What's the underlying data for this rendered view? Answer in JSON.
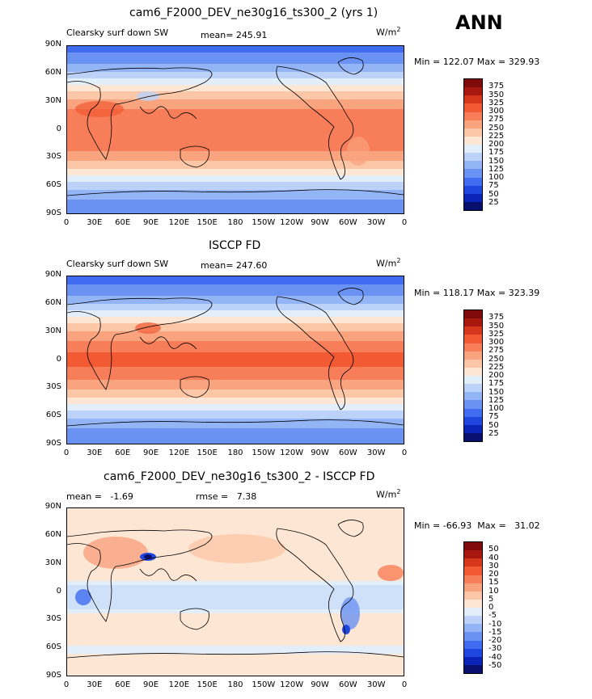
{
  "season": "ANN",
  "units": "W/m",
  "units_sup": "2",
  "panels": [
    {
      "title": "cam6_F2000_DEV_ne30g16_ts300_2 (yrs 1)",
      "left_label": "Clearsky surf down SW",
      "stat_label": "mean=",
      "stat_value": "245.91",
      "min_label": "Min =",
      "min_value": "122.07",
      "max_label": "Max =",
      "max_value": "329.93",
      "colorbar_labels": [
        "375",
        "350",
        "325",
        "300",
        "275",
        "250",
        "225",
        "200",
        "175",
        "150",
        "125",
        "100",
        "75",
        "50",
        "25"
      ]
    },
    {
      "title": "ISCCP FD",
      "left_label": "Clearsky surf down SW",
      "stat_label": "mean=",
      "stat_value": "247.60",
      "min_label": "Min =",
      "min_value": "118.17",
      "max_label": "Max =",
      "max_value": "323.39",
      "colorbar_labels": [
        "375",
        "350",
        "325",
        "300",
        "275",
        "250",
        "225",
        "200",
        "175",
        "150",
        "125",
        "100",
        "75",
        "50",
        "25"
      ]
    },
    {
      "title": "cam6_F2000_DEV_ne30g16_ts300_2 - ISCCP FD",
      "left_label": "mean =",
      "left_value": "-1.69",
      "stat_label": "rmse =",
      "stat_value": "7.38",
      "min_label": "Min =",
      "min_value": "-66.93",
      "max_label": "Max =",
      "max_value": "31.02",
      "colorbar_labels": [
        "50",
        "40",
        "30",
        "20",
        "15",
        "10",
        "5",
        "0",
        "-5",
        "-10",
        "-15",
        "-20",
        "-30",
        "-40",
        "-50"
      ]
    }
  ],
  "lat_ticks": [
    "90N",
    "60N",
    "30N",
    "0",
    "30S",
    "60S",
    "90S"
  ],
  "lon_ticks": [
    "0",
    "30E",
    "60E",
    "90E",
    "120E",
    "150E",
    "180",
    "150W",
    "120W",
    "90W",
    "60W",
    "30W",
    "0"
  ],
  "colors": {
    "abs_scale": [
      "#08106e",
      "#0b24b8",
      "#1f47e0",
      "#3f6cf0",
      "#6a92f3",
      "#93b4f5",
      "#bcd2f8",
      "#e3eefb",
      "#fde6d3",
      "#fbc7a7",
      "#f9a37f",
      "#f77e58",
      "#f15a32",
      "#d6371c",
      "#a8180f",
      "#7e0a0a"
    ],
    "diff_scale": [
      "#08106e",
      "#0b24b8",
      "#1f47e0",
      "#3f6cf0",
      "#6a92f3",
      "#93b4f5",
      "#bcd2f8",
      "#e3eefb",
      "#fde6d3",
      "#fbc7a7",
      "#f9a37f",
      "#f77e58",
      "#f15a32",
      "#d6371c",
      "#a8180f",
      "#7e0a0a"
    ]
  }
}
